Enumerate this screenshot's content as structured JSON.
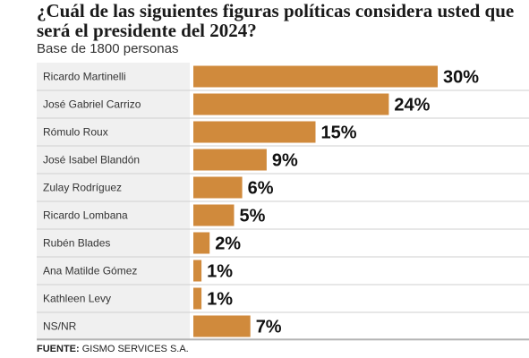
{
  "chart_data": {
    "type": "bar",
    "orientation": "horizontal",
    "title": "¿Cuál de las siguientes figuras políticas considera usted que será el presidente del 2024?",
    "subtitle": "Base de 1800 personas",
    "categories": [
      "Ricardo Martinelli",
      "José Gabriel Carrizo",
      "Rómulo Roux",
      "José Isabel Blandón",
      "Zulay Rodríguez",
      "Ricardo Lombana",
      "Rubén Blades",
      "Ana Matilde Gómez",
      "Kathleen Levy",
      "NS/NR"
    ],
    "values": [
      30,
      24,
      15,
      9,
      6,
      5,
      2,
      1,
      1,
      7
    ],
    "value_labels": [
      "30%",
      "24%",
      "15%",
      "9%",
      "6%",
      "5%",
      "2%",
      "1%",
      "1%",
      "7%"
    ],
    "bar_color": "#d08a3c",
    "row_shading": "#f0f0f0",
    "grid": false,
    "legend": "none"
  },
  "source": {
    "label": "FUENTE:",
    "text": " GISMO SERVICES S.A."
  }
}
